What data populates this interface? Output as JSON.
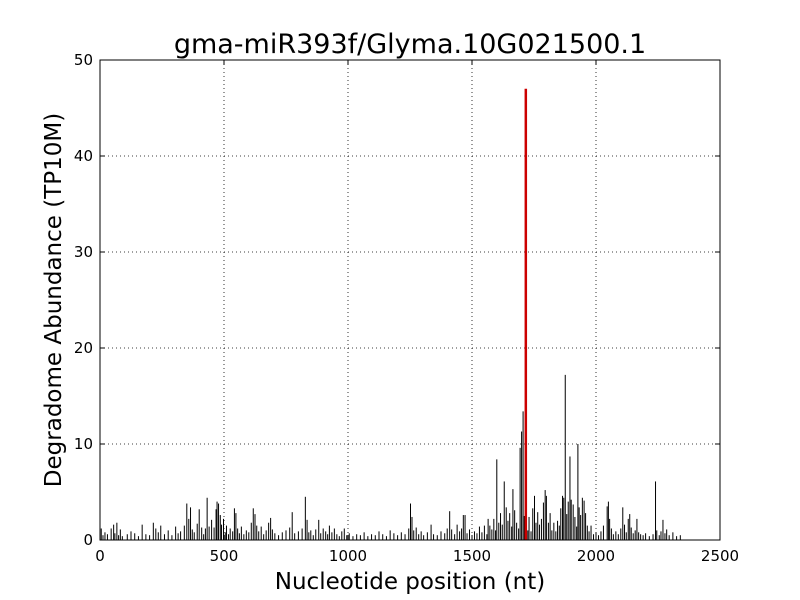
{
  "chart_data": {
    "type": "bar",
    "title": "gma-miR393f/Glyma.10G021500.1",
    "xlabel": "Nucleotide position (nt)",
    "ylabel": "Degradome Abundance (TP10M)",
    "xlim": [
      0,
      2500
    ],
    "ylim": [
      0,
      50
    ],
    "xticks": [
      0,
      500,
      1000,
      1500,
      2000,
      2500
    ],
    "yticks": [
      0,
      10,
      20,
      30,
      40,
      50
    ],
    "grid": true,
    "series": [
      {
        "color": "#000000",
        "points": [
          [
            5,
            1.2
          ],
          [
            12,
            0.5
          ],
          [
            20,
            0.8
          ],
          [
            30,
            0.6
          ],
          [
            45,
            1.2
          ],
          [
            55,
            1.6
          ],
          [
            60,
            0.7
          ],
          [
            68,
            1.8
          ],
          [
            75,
            0.5
          ],
          [
            82,
            1.1
          ],
          [
            90,
            0.4
          ],
          [
            110,
            0.6
          ],
          [
            125,
            0.9
          ],
          [
            140,
            0.7
          ],
          [
            155,
            0.4
          ],
          [
            170,
            1.6
          ],
          [
            185,
            0.6
          ],
          [
            200,
            0.5
          ],
          [
            215,
            1.8
          ],
          [
            225,
            1.2
          ],
          [
            235,
            0.8
          ],
          [
            245,
            1.5
          ],
          [
            260,
            0.6
          ],
          [
            275,
            1.0
          ],
          [
            290,
            0.5
          ],
          [
            305,
            1.4
          ],
          [
            315,
            0.7
          ],
          [
            325,
            0.9
          ],
          [
            340,
            1.5
          ],
          [
            350,
            3.8
          ],
          [
            358,
            2.2
          ],
          [
            365,
            3.4
          ],
          [
            372,
            1.1
          ],
          [
            380,
            0.8
          ],
          [
            392,
            1.7
          ],
          [
            400,
            3.2
          ],
          [
            410,
            1.3
          ],
          [
            418,
            0.6
          ],
          [
            425,
            1.2
          ],
          [
            432,
            4.4
          ],
          [
            440,
            1.4
          ],
          [
            450,
            2.1
          ],
          [
            460,
            1.3
          ],
          [
            468,
            3.2
          ],
          [
            472,
            4.0
          ],
          [
            478,
            3.8
          ],
          [
            485,
            2.6
          ],
          [
            490,
            1.6
          ],
          [
            498,
            2.2
          ],
          [
            505,
            0.8
          ],
          [
            510,
            1.5
          ],
          [
            518,
            0.6
          ],
          [
            525,
            1.2
          ],
          [
            535,
            0.9
          ],
          [
            542,
            3.3
          ],
          [
            548,
            2.8
          ],
          [
            555,
            1.2
          ],
          [
            562,
            0.7
          ],
          [
            570,
            1.4
          ],
          [
            580,
            0.6
          ],
          [
            590,
            1.0
          ],
          [
            600,
            0.8
          ],
          [
            610,
            1.8
          ],
          [
            618,
            3.3
          ],
          [
            625,
            2.7
          ],
          [
            632,
            1.5
          ],
          [
            640,
            0.9
          ],
          [
            650,
            1.4
          ],
          [
            660,
            0.6
          ],
          [
            670,
            1.0
          ],
          [
            680,
            1.8
          ],
          [
            688,
            2.3
          ],
          [
            695,
            1.1
          ],
          [
            705,
            0.7
          ],
          [
            720,
            0.5
          ],
          [
            735,
            0.8
          ],
          [
            750,
            1.0
          ],
          [
            765,
            1.3
          ],
          [
            775,
            2.9
          ],
          [
            785,
            0.7
          ],
          [
            800,
            0.9
          ],
          [
            815,
            1.2
          ],
          [
            828,
            4.5
          ],
          [
            835,
            2.1
          ],
          [
            842,
            0.8
          ],
          [
            850,
            1.0
          ],
          [
            860,
            0.5
          ],
          [
            870,
            1.1
          ],
          [
            882,
            2.1
          ],
          [
            890,
            0.7
          ],
          [
            900,
            1.2
          ],
          [
            910,
            0.9
          ],
          [
            918,
            0.6
          ],
          [
            925,
            1.5
          ],
          [
            935,
            0.8
          ],
          [
            945,
            1.2
          ],
          [
            955,
            0.6
          ],
          [
            965,
            0.4
          ],
          [
            975,
            0.9
          ],
          [
            985,
            1.2
          ],
          [
            995,
            0.5
          ],
          [
            1005,
            0.7
          ],
          [
            1020,
            0.4
          ],
          [
            1035,
            0.6
          ],
          [
            1050,
            0.5
          ],
          [
            1065,
            0.8
          ],
          [
            1080,
            0.4
          ],
          [
            1095,
            0.6
          ],
          [
            1110,
            0.5
          ],
          [
            1125,
            0.9
          ],
          [
            1140,
            0.6
          ],
          [
            1155,
            0.4
          ],
          [
            1170,
            1.0
          ],
          [
            1185,
            0.7
          ],
          [
            1200,
            0.5
          ],
          [
            1215,
            0.8
          ],
          [
            1230,
            0.6
          ],
          [
            1245,
            1.2
          ],
          [
            1252,
            3.8
          ],
          [
            1258,
            2.4
          ],
          [
            1265,
            1.0
          ],
          [
            1275,
            1.3
          ],
          [
            1285,
            0.6
          ],
          [
            1295,
            0.9
          ],
          [
            1305,
            0.5
          ],
          [
            1320,
            0.8
          ],
          [
            1335,
            1.6
          ],
          [
            1345,
            0.6
          ],
          [
            1360,
            0.5
          ],
          [
            1375,
            0.9
          ],
          [
            1390,
            0.7
          ],
          [
            1400,
            1.2
          ],
          [
            1410,
            3.0
          ],
          [
            1418,
            1.1
          ],
          [
            1430,
            0.6
          ],
          [
            1440,
            1.6
          ],
          [
            1450,
            0.9
          ],
          [
            1458,
            1.2
          ],
          [
            1465,
            2.6
          ],
          [
            1472,
            2.6
          ],
          [
            1480,
            0.7
          ],
          [
            1490,
            1.1
          ],
          [
            1500,
            0.5
          ],
          [
            1510,
            0.9
          ],
          [
            1520,
            0.7
          ],
          [
            1530,
            1.4
          ],
          [
            1540,
            0.8
          ],
          [
            1550,
            1.5
          ],
          [
            1560,
            0.6
          ],
          [
            1565,
            2.2
          ],
          [
            1572,
            1.5
          ],
          [
            1580,
            1.1
          ],
          [
            1588,
            2.2
          ],
          [
            1595,
            1.0
          ],
          [
            1600,
            8.4
          ],
          [
            1608,
            1.8
          ],
          [
            1615,
            2.8
          ],
          [
            1622,
            1.6
          ],
          [
            1630,
            6.1
          ],
          [
            1638,
            3.4
          ],
          [
            1645,
            2.0
          ],
          [
            1652,
            2.8
          ],
          [
            1660,
            1.4
          ],
          [
            1665,
            5.3
          ],
          [
            1672,
            3.1
          ],
          [
            1680,
            1.8
          ],
          [
            1688,
            1.2
          ],
          [
            1694,
            9.6
          ],
          [
            1700,
            11.3
          ],
          [
            1706,
            13.4
          ],
          [
            1711,
            2.5
          ],
          [
            1725,
            1.0
          ],
          [
            1730,
            2.4
          ],
          [
            1738,
            0.9
          ],
          [
            1745,
            3.3
          ],
          [
            1752,
            4.6
          ],
          [
            1758,
            1.8
          ],
          [
            1765,
            2.9
          ],
          [
            1772,
            1.6
          ],
          [
            1780,
            2.2
          ],
          [
            1788,
            3.9
          ],
          [
            1795,
            5.2
          ],
          [
            1800,
            4.6
          ],
          [
            1808,
            1.8
          ],
          [
            1815,
            2.8
          ],
          [
            1822,
            1.0
          ],
          [
            1830,
            1.8
          ],
          [
            1838,
            0.9
          ],
          [
            1845,
            2.0
          ],
          [
            1852,
            1.5
          ],
          [
            1858,
            3.3
          ],
          [
            1865,
            4.6
          ],
          [
            1870,
            4.4
          ],
          [
            1876,
            17.2
          ],
          [
            1882,
            2.7
          ],
          [
            1888,
            4.0
          ],
          [
            1895,
            8.7
          ],
          [
            1900,
            4.2
          ],
          [
            1908,
            3.7
          ],
          [
            1915,
            2.4
          ],
          [
            1922,
            1.4
          ],
          [
            1927,
            10.0
          ],
          [
            1932,
            3.4
          ],
          [
            1938,
            2.6
          ],
          [
            1945,
            4.4
          ],
          [
            1952,
            4.1
          ],
          [
            1958,
            2.8
          ],
          [
            1965,
            1.5
          ],
          [
            1972,
            0.9
          ],
          [
            1980,
            1.5
          ],
          [
            1990,
            0.6
          ],
          [
            2000,
            0.8
          ],
          [
            2010,
            0.5
          ],
          [
            2020,
            0.9
          ],
          [
            2030,
            1.5
          ],
          [
            2045,
            3.5
          ],
          [
            2050,
            4.0
          ],
          [
            2055,
            2.2
          ],
          [
            2062,
            1.2
          ],
          [
            2070,
            0.6
          ],
          [
            2080,
            0.9
          ],
          [
            2090,
            0.6
          ],
          [
            2100,
            1.2
          ],
          [
            2108,
            3.4
          ],
          [
            2115,
            1.6
          ],
          [
            2122,
            0.8
          ],
          [
            2130,
            2.2
          ],
          [
            2136,
            2.7
          ],
          [
            2142,
            1.3
          ],
          [
            2150,
            0.7
          ],
          [
            2158,
            1.0
          ],
          [
            2165,
            2.2
          ],
          [
            2172,
            0.8
          ],
          [
            2180,
            0.6
          ],
          [
            2190,
            0.5
          ],
          [
            2200,
            0.7
          ],
          [
            2215,
            0.4
          ],
          [
            2230,
            0.6
          ],
          [
            2240,
            6.1
          ],
          [
            2245,
            1.0
          ],
          [
            2255,
            0.5
          ],
          [
            2262,
            0.9
          ],
          [
            2270,
            2.1
          ],
          [
            2278,
            0.7
          ],
          [
            2285,
            1.1
          ],
          [
            2295,
            0.5
          ],
          [
            2310,
            0.8
          ],
          [
            2325,
            0.4
          ],
          [
            2340,
            0.5
          ]
        ]
      },
      {
        "color": "#cc0000",
        "points": [
          [
            1717,
            47.0
          ]
        ]
      }
    ]
  }
}
